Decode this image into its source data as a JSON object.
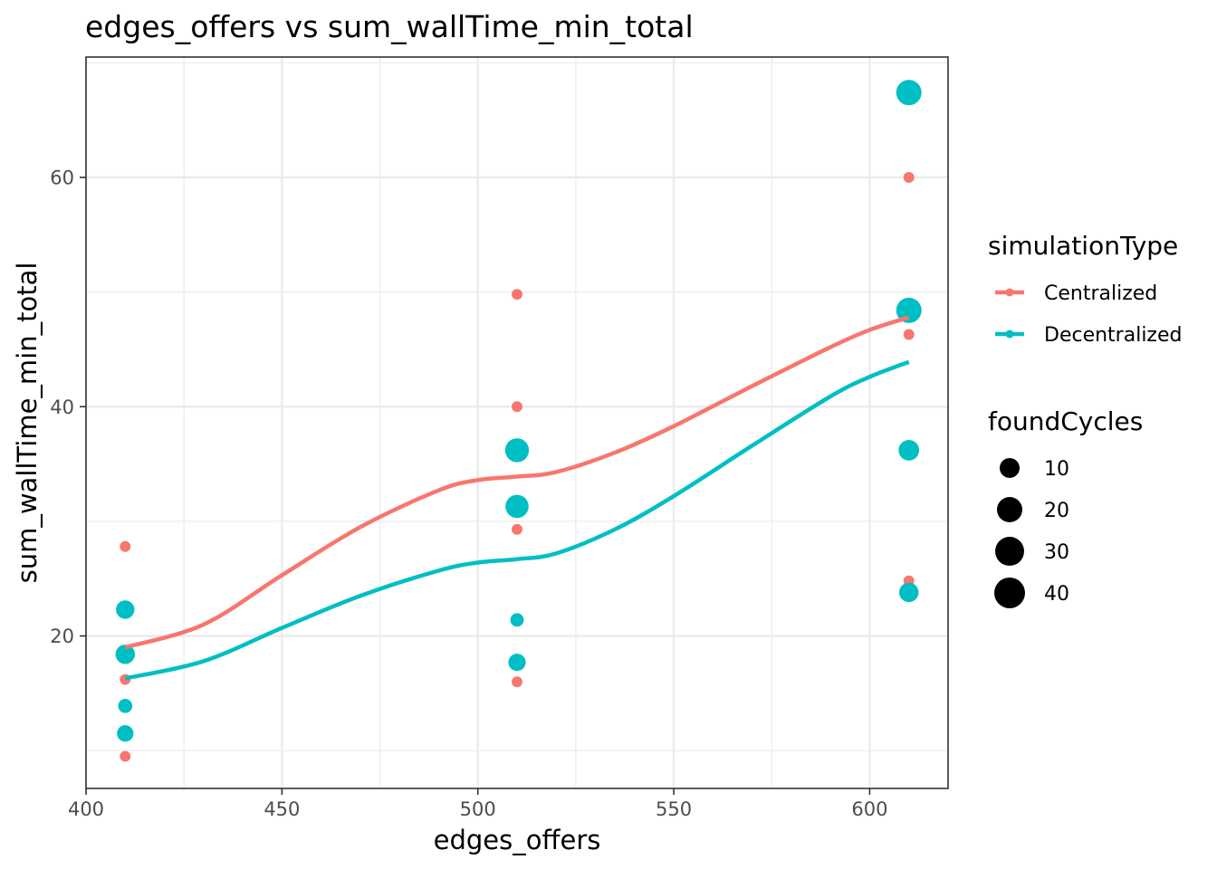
{
  "chart_data": {
    "type": "scatter",
    "title": "edges_offers  vs  sum_wallTime_min_total",
    "xlabel": "edges_offers",
    "ylabel": "sum_wallTime_min_total",
    "xlim": [
      400,
      620
    ],
    "ylim": [
      6.7,
      70.5
    ],
    "xticks": [
      400,
      450,
      500,
      550,
      600
    ],
    "yticks": [
      20,
      40,
      60
    ],
    "grid": true,
    "series": [
      {
        "name": "Centralized",
        "color": "#F8766D",
        "points": [
          {
            "x": 410,
            "y": 27.8,
            "size": 1
          },
          {
            "x": 410,
            "y": 22.0,
            "size": 1
          },
          {
            "x": 410,
            "y": 16.2,
            "size": 1
          },
          {
            "x": 410,
            "y": 9.5,
            "size": 1
          },
          {
            "x": 510,
            "y": 49.8,
            "size": 1
          },
          {
            "x": 510,
            "y": 40.0,
            "size": 1
          },
          {
            "x": 510,
            "y": 29.3,
            "size": 1
          },
          {
            "x": 510,
            "y": 16.0,
            "size": 1
          },
          {
            "x": 610,
            "y": 60.0,
            "size": 1
          },
          {
            "x": 610,
            "y": 46.3,
            "size": 1
          },
          {
            "x": 610,
            "y": 24.8,
            "size": 1
          }
        ],
        "smooth": [
          [
            410,
            19.0
          ],
          [
            430,
            21.0
          ],
          [
            450,
            25.3
          ],
          [
            470,
            29.5
          ],
          [
            490,
            32.7
          ],
          [
            500,
            33.6
          ],
          [
            510,
            33.9
          ],
          [
            520,
            34.3
          ],
          [
            535,
            36.0
          ],
          [
            550,
            38.3
          ],
          [
            570,
            41.8
          ],
          [
            590,
            45.2
          ],
          [
            600,
            46.7
          ],
          [
            610,
            47.8
          ]
        ]
      },
      {
        "name": "Decentralized",
        "color": "#00BFC4",
        "points": [
          {
            "x": 410,
            "y": 22.3,
            "size": 15
          },
          {
            "x": 410,
            "y": 18.4,
            "size": 18
          },
          {
            "x": 410,
            "y": 13.9,
            "size": 5
          },
          {
            "x": 410,
            "y": 11.5,
            "size": 10
          },
          {
            "x": 510,
            "y": 36.2,
            "size": 35
          },
          {
            "x": 510,
            "y": 31.3,
            "size": 32
          },
          {
            "x": 510,
            "y": 21.4,
            "size": 4
          },
          {
            "x": 510,
            "y": 17.7,
            "size": 12
          },
          {
            "x": 610,
            "y": 67.4,
            "size": 42
          },
          {
            "x": 610,
            "y": 48.4,
            "size": 42
          },
          {
            "x": 610,
            "y": 36.2,
            "size": 22
          },
          {
            "x": 610,
            "y": 23.8,
            "size": 18
          }
        ],
        "smooth": [
          [
            410,
            16.3
          ],
          [
            430,
            17.8
          ],
          [
            450,
            20.7
          ],
          [
            470,
            23.5
          ],
          [
            490,
            25.7
          ],
          [
            500,
            26.4
          ],
          [
            510,
            26.7
          ],
          [
            520,
            27.2
          ],
          [
            535,
            29.3
          ],
          [
            550,
            32.2
          ],
          [
            570,
            36.6
          ],
          [
            590,
            40.9
          ],
          [
            600,
            42.6
          ],
          [
            610,
            43.9
          ]
        ]
      }
    ],
    "legend": {
      "placement": "right",
      "color_title": "simulationType",
      "color_items": [
        {
          "label": "Centralized",
          "color": "#F8766D"
        },
        {
          "label": "Decentralized",
          "color": "#00BFC4"
        }
      ],
      "size_title": "foundCycles",
      "size_items": [
        {
          "label": "10",
          "value": 10
        },
        {
          "label": "20",
          "value": 20
        },
        {
          "label": "30",
          "value": 30
        },
        {
          "label": "40",
          "value": 40
        }
      ]
    }
  }
}
